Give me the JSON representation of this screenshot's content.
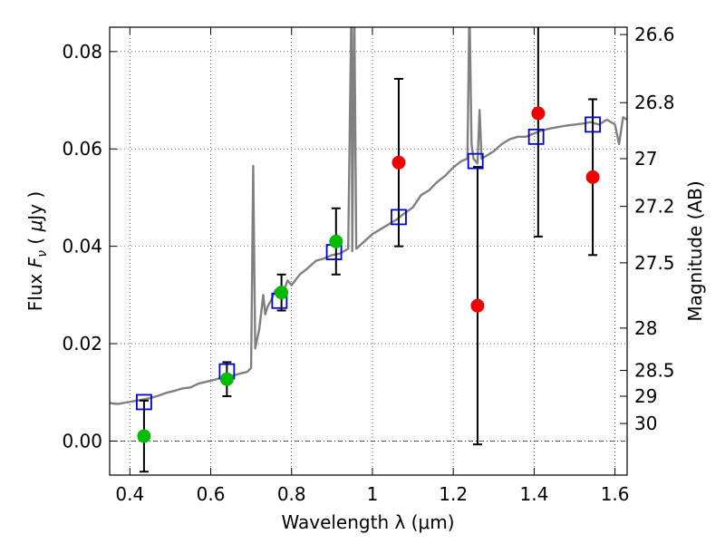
{
  "chart_data": {
    "type": "scatter",
    "title": "",
    "xlabel": "Wavelength  λ (μm)",
    "ylabel": "Flux  F_ν  ( μJy )",
    "ylabel_parts": [
      "Flux ",
      "F",
      "ν",
      " ( ",
      "μ",
      "Jy )"
    ],
    "y2label": "Magnitude (AB)",
    "xlim": [
      0.35,
      1.63
    ],
    "ylim": [
      -0.007,
      0.085
    ],
    "grid": true,
    "zero_line": true,
    "xticks": [
      0.4,
      0.6,
      0.8,
      1.0,
      1.2,
      1.4,
      1.6
    ],
    "xtick_labels": [
      "0.4",
      "0.6",
      "0.8",
      "1",
      "1.2",
      "1.4",
      "1.6"
    ],
    "yticks": [
      0.0,
      0.02,
      0.04,
      0.06,
      0.08
    ],
    "ytick_labels": [
      "0.00",
      "0.02",
      "0.04",
      "0.06",
      "0.08"
    ],
    "y2_ticks": [
      {
        "label": "26.6",
        "flux": 0.0835
      },
      {
        "label": "26.8",
        "flux": 0.0695
      },
      {
        "label": "27",
        "flux": 0.058
      },
      {
        "label": "27.2",
        "flux": 0.0482
      },
      {
        "label": "27.5",
        "flux": 0.0366
      },
      {
        "label": "28",
        "flux": 0.0232
      },
      {
        "label": "28.5",
        "flux": 0.0145
      },
      {
        "label": "29",
        "flux": 0.0092
      },
      {
        "label": "30",
        "flux": 0.0036
      }
    ],
    "series": [
      {
        "kind": "model_sed",
        "color": "#808080",
        "x": [
          0.35,
          0.37,
          0.39,
          0.41,
          0.43,
          0.45,
          0.47,
          0.49,
          0.51,
          0.53,
          0.55,
          0.57,
          0.59,
          0.61,
          0.63,
          0.65,
          0.67,
          0.69,
          0.7,
          0.705,
          0.71,
          0.72,
          0.73,
          0.735,
          0.74,
          0.75,
          0.76,
          0.77,
          0.78,
          0.79,
          0.8,
          0.82,
          0.84,
          0.86,
          0.88,
          0.9,
          0.92,
          0.94,
          0.948,
          0.95,
          0.955,
          0.96,
          0.98,
          1.0,
          1.02,
          1.04,
          1.06,
          1.08,
          1.1,
          1.12,
          1.14,
          1.16,
          1.18,
          1.2,
          1.22,
          1.235,
          1.24,
          1.245,
          1.25,
          1.26,
          1.265,
          1.27,
          1.28,
          1.3,
          1.32,
          1.34,
          1.36,
          1.38,
          1.4,
          1.42,
          1.44,
          1.46,
          1.48,
          1.5,
          1.52,
          1.54,
          1.56,
          1.58,
          1.6,
          1.61,
          1.62,
          1.63
        ],
        "y": [
          0.0078,
          0.0076,
          0.0079,
          0.0082,
          0.0085,
          0.0088,
          0.0093,
          0.0099,
          0.0103,
          0.0108,
          0.011,
          0.0118,
          0.0122,
          0.0126,
          0.0131,
          0.0133,
          0.0138,
          0.0142,
          0.015,
          0.0565,
          0.019,
          0.023,
          0.03,
          0.026,
          0.0275,
          0.029,
          0.031,
          0.03,
          0.0305,
          0.033,
          0.032,
          0.0342,
          0.0355,
          0.037,
          0.0375,
          0.0382,
          0.0385,
          0.0395,
          0.09,
          0.039,
          0.09,
          0.0395,
          0.041,
          0.0425,
          0.0435,
          0.0445,
          0.0455,
          0.0468,
          0.048,
          0.0505,
          0.0515,
          0.0532,
          0.0545,
          0.0562,
          0.0575,
          0.058,
          0.09,
          0.061,
          0.058,
          0.057,
          0.068,
          0.058,
          0.0585,
          0.0595,
          0.061,
          0.062,
          0.0625,
          0.0625,
          0.0632,
          0.0638,
          0.0642,
          0.0645,
          0.0648,
          0.065,
          0.0652,
          0.0655,
          0.065,
          0.066,
          0.065,
          0.061,
          0.0665,
          0.066
        ]
      },
      {
        "kind": "model_photometry",
        "marker": "open-square",
        "color": "#0000cc",
        "x": [
          0.435,
          0.64,
          0.77,
          0.905,
          1.065,
          1.255,
          1.405,
          1.545
        ],
        "y": [
          0.008,
          0.0143,
          0.0288,
          0.0388,
          0.046,
          0.0575,
          0.0625,
          0.065
        ]
      },
      {
        "kind": "observed_photometry",
        "marker": "filled-circle",
        "color": "#00bb00",
        "x": [
          0.435,
          0.64,
          0.775,
          0.91
        ],
        "y": [
          0.001,
          0.0127,
          0.0305,
          0.041
        ],
        "err": [
          0.0073,
          0.0035,
          0.0037,
          0.0068
        ]
      },
      {
        "kind": "observed_photometry",
        "marker": "filled-circle",
        "color": "#ee0000",
        "x": [
          1.065,
          1.26,
          1.41,
          1.545
        ],
        "y": [
          0.0572,
          0.0278,
          0.0673,
          0.0542
        ],
        "err": [
          0.0172,
          0.0285,
          0.0253,
          0.016
        ]
      }
    ]
  }
}
